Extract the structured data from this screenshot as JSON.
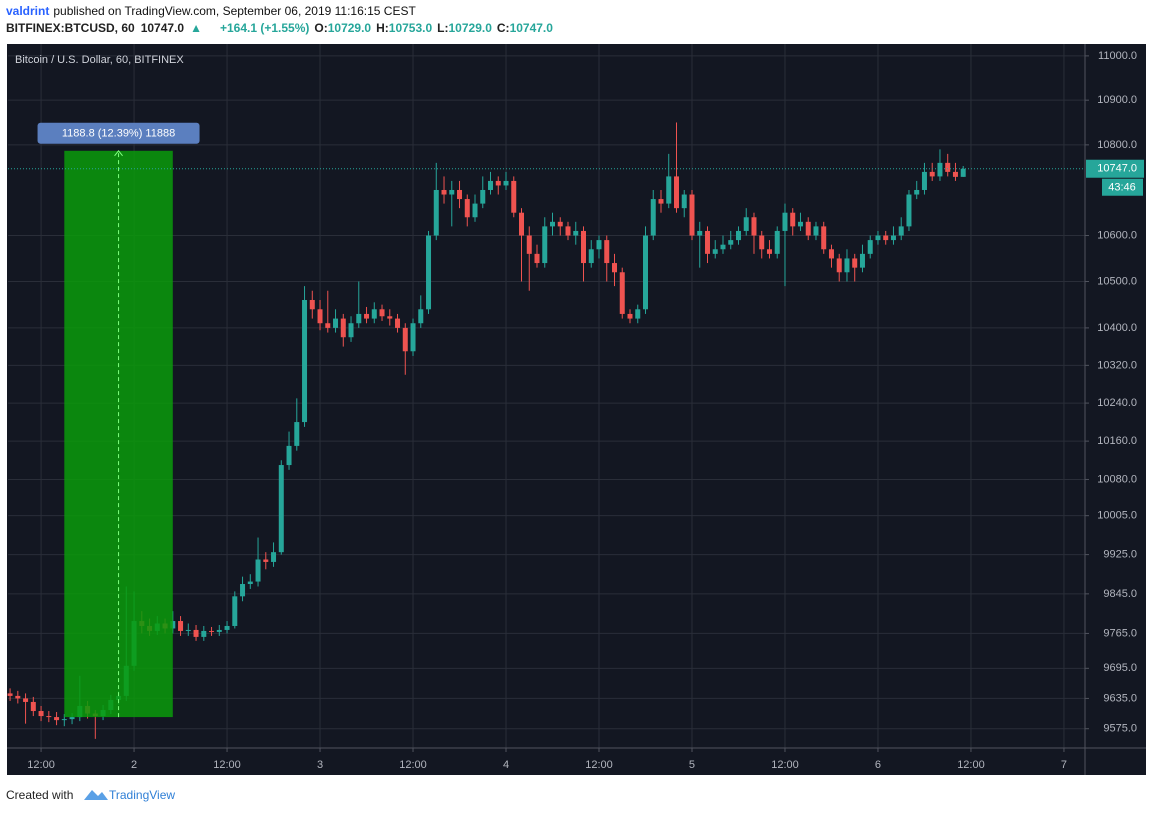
{
  "header": {
    "publisher": "valdrint",
    "published": "published on TradingView.com, September 06, 2019 11:16:15 CEST",
    "symbol": "BITFINEX:BTCUSD, 60",
    "last": "10747.0",
    "change": "+164.1 (+1.55%)",
    "ohlc": [
      {
        "key": "O:",
        "value": "10729.0"
      },
      {
        "key": "H:",
        "value": "10753.0"
      },
      {
        "key": "L:",
        "value": "10729.0"
      },
      {
        "key": "C:",
        "value": "10747.0"
      }
    ]
  },
  "chart_data": {
    "type": "candlestick",
    "title": "Bitcoin / U.S. Dollar, 60, BITFINEX",
    "up_color": "#26a69a",
    "down_color": "#ef5350",
    "background": "#131722",
    "grid": true,
    "log_scale": true,
    "x": [
      "2019-09-01T08:00",
      "2019-09-01T09:00",
      "2019-09-01T10:00",
      "2019-09-01T11:00",
      "2019-09-01T12:00",
      "2019-09-01T13:00",
      "2019-09-01T14:00",
      "2019-09-01T15:00",
      "2019-09-01T16:00",
      "2019-09-01T17:00",
      "2019-09-01T18:00",
      "2019-09-01T19:00",
      "2019-09-01T20:00",
      "2019-09-01T21:00",
      "2019-09-01T22:00",
      "2019-09-01T23:00",
      "2019-09-02T00:00",
      "2019-09-02T01:00",
      "2019-09-02T02:00",
      "2019-09-02T03:00",
      "2019-09-02T04:00",
      "2019-09-02T05:00",
      "2019-09-02T06:00",
      "2019-09-02T07:00",
      "2019-09-02T08:00",
      "2019-09-02T09:00",
      "2019-09-02T10:00",
      "2019-09-02T11:00",
      "2019-09-02T12:00",
      "2019-09-02T13:00",
      "2019-09-02T14:00",
      "2019-09-02T15:00",
      "2019-09-02T16:00",
      "2019-09-02T17:00",
      "2019-09-02T18:00",
      "2019-09-02T19:00",
      "2019-09-02T20:00",
      "2019-09-02T21:00",
      "2019-09-02T22:00",
      "2019-09-02T23:00",
      "2019-09-03T00:00",
      "2019-09-03T01:00",
      "2019-09-03T02:00",
      "2019-09-03T03:00",
      "2019-09-03T04:00",
      "2019-09-03T05:00",
      "2019-09-03T06:00",
      "2019-09-03T07:00",
      "2019-09-03T08:00",
      "2019-09-03T09:00",
      "2019-09-03T10:00",
      "2019-09-03T11:00",
      "2019-09-03T12:00",
      "2019-09-03T13:00",
      "2019-09-03T14:00",
      "2019-09-03T15:00",
      "2019-09-03T16:00",
      "2019-09-03T17:00",
      "2019-09-03T18:00",
      "2019-09-03T19:00",
      "2019-09-03T20:00",
      "2019-09-03T21:00",
      "2019-09-03T22:00",
      "2019-09-03T23:00",
      "2019-09-04T00:00",
      "2019-09-04T01:00",
      "2019-09-04T02:00",
      "2019-09-04T03:00",
      "2019-09-04T04:00",
      "2019-09-04T05:00",
      "2019-09-04T06:00",
      "2019-09-04T07:00",
      "2019-09-04T08:00",
      "2019-09-04T09:00",
      "2019-09-04T10:00",
      "2019-09-04T11:00",
      "2019-09-04T12:00",
      "2019-09-04T13:00",
      "2019-09-04T14:00",
      "2019-09-04T15:00",
      "2019-09-04T16:00",
      "2019-09-04T17:00",
      "2019-09-04T18:00",
      "2019-09-04T19:00",
      "2019-09-04T20:00",
      "2019-09-04T21:00",
      "2019-09-04T22:00",
      "2019-09-04T23:00",
      "2019-09-05T00:00",
      "2019-09-05T01:00",
      "2019-09-05T02:00",
      "2019-09-05T03:00",
      "2019-09-05T04:00",
      "2019-09-05T05:00",
      "2019-09-05T06:00",
      "2019-09-05T07:00",
      "2019-09-05T08:00",
      "2019-09-05T09:00",
      "2019-09-05T10:00",
      "2019-09-05T11:00",
      "2019-09-05T12:00",
      "2019-09-05T13:00",
      "2019-09-05T14:00",
      "2019-09-05T15:00",
      "2019-09-05T16:00",
      "2019-09-05T17:00",
      "2019-09-05T18:00",
      "2019-09-05T19:00",
      "2019-09-05T20:00",
      "2019-09-05T21:00",
      "2019-09-05T22:00",
      "2019-09-05T23:00",
      "2019-09-06T00:00",
      "2019-09-06T01:00",
      "2019-09-06T02:00",
      "2019-09-06T03:00",
      "2019-09-06T04:00",
      "2019-09-06T05:00",
      "2019-09-06T06:00",
      "2019-09-06T07:00",
      "2019-09-06T08:00",
      "2019-09-06T09:00",
      "2019-09-06T10:00",
      "2019-09-06T11:00"
    ],
    "open": [
      9645,
      9640,
      9635,
      9628,
      9610,
      9600,
      9598,
      9592,
      9594,
      9598,
      9620,
      9605,
      9600,
      9612,
      9632,
      9640,
      9700,
      9790,
      9780,
      9770,
      9785,
      9775,
      9790,
      9770,
      9772,
      9758,
      9770,
      9768,
      9772,
      9780,
      9840,
      9865,
      9870,
      9915,
      9910,
      9930,
      10110,
      10150,
      10200,
      10460,
      10440,
      10410,
      10400,
      10420,
      10380,
      10410,
      10430,
      10420,
      10440,
      10425,
      10420,
      10400,
      10350,
      10410,
      10440,
      10600,
      10700,
      10690,
      10700,
      10680,
      10640,
      10670,
      10700,
      10720,
      10710,
      10720,
      10650,
      10600,
      10560,
      10540,
      10620,
      10630,
      10620,
      10600,
      10610,
      10540,
      10570,
      10590,
      10540,
      10520,
      10430,
      10420,
      10440,
      10600,
      10680,
      10670,
      10730,
      10660,
      10690,
      10600,
      10610,
      10560,
      10570,
      10580,
      10590,
      10610,
      10640,
      10600,
      10570,
      10560,
      10610,
      10650,
      10620,
      10630,
      10600,
      10620,
      10570,
      10550,
      10520,
      10550,
      10530,
      10560,
      10590,
      10600,
      10590,
      10600,
      10620,
      10690,
      10700,
      10740,
      10730,
      10760,
      10740,
      10729
    ],
    "high": [
      9655,
      9650,
      9645,
      9638,
      9620,
      9610,
      9608,
      9604,
      9606,
      9680,
      9630,
      9612,
      9622,
      9642,
      9650,
      9860,
      9850,
      9810,
      9795,
      9800,
      9795,
      9810,
      9800,
      9785,
      9782,
      9780,
      9778,
      9782,
      9790,
      9850,
      9880,
      9885,
      9960,
      9930,
      9950,
      10120,
      10180,
      10250,
      10490,
      10480,
      10460,
      10480,
      10440,
      10430,
      10425,
      10500,
      10445,
      10455,
      10450,
      10440,
      10430,
      10410,
      10420,
      10470,
      10610,
      10760,
      10730,
      10720,
      10720,
      10690,
      10690,
      10730,
      10740,
      10730,
      10740,
      10730,
      10660,
      10620,
      10580,
      10640,
      10650,
      10640,
      10630,
      10630,
      10620,
      10590,
      10600,
      10600,
      10560,
      10530,
      10440,
      10450,
      10620,
      10700,
      10700,
      10780,
      10850,
      10700,
      10700,
      10630,
      10620,
      10590,
      10600,
      10610,
      10620,
      10660,
      10650,
      10610,
      10590,
      10620,
      10670,
      10660,
      10650,
      10640,
      10630,
      10630,
      10580,
      10560,
      10570,
      10560,
      10580,
      10600,
      10610,
      10610,
      10620,
      10640,
      10700,
      10720,
      10760,
      10760,
      10790,
      10780,
      10760,
      10753
    ],
    "low": [
      9630,
      9625,
      9585,
      9600,
      9590,
      9588,
      9582,
      9580,
      9584,
      9590,
      9595,
      9555,
      9592,
      9604,
      9622,
      9630,
      9690,
      9765,
      9760,
      9762,
      9765,
      9765,
      9760,
      9760,
      9750,
      9750,
      9760,
      9760,
      9765,
      9775,
      9830,
      9855,
      9860,
      9895,
      9900,
      9925,
      10100,
      10140,
      10190,
      10420,
      10395,
      10390,
      10390,
      10360,
      10370,
      10400,
      10410,
      10410,
      10415,
      10405,
      10390,
      10300,
      10340,
      10400,
      10430,
      10590,
      10670,
      10620,
      10660,
      10620,
      10630,
      10660,
      10690,
      10690,
      10700,
      10640,
      10500,
      10480,
      10530,
      10530,
      10600,
      10600,
      10590,
      10580,
      10500,
      10530,
      10550,
      10500,
      10490,
      10420,
      10410,
      10410,
      10430,
      10590,
      10650,
      10660,
      10650,
      10640,
      10590,
      10530,
      10540,
      10550,
      10560,
      10570,
      10580,
      10600,
      10560,
      10550,
      10550,
      10550,
      10490,
      10600,
      10610,
      10590,
      10590,
      10560,
      10530,
      10500,
      10500,
      10500,
      10520,
      10550,
      10580,
      10580,
      10580,
      10590,
      10610,
      10680,
      10690,
      10720,
      10720,
      10730,
      10720,
      10729
    ],
    "close": [
      9640,
      9635,
      9628,
      9610,
      9600,
      9598,
      9592,
      9594,
      9598,
      9620,
      9605,
      9600,
      9612,
      9632,
      9640,
      9700,
      9790,
      9780,
      9770,
      9785,
      9775,
      9790,
      9770,
      9772,
      9758,
      9770,
      9768,
      9772,
      9780,
      9840,
      9865,
      9870,
      9915,
      9910,
      9930,
      10110,
      10150,
      10200,
      10460,
      10440,
      10410,
      10400,
      10420,
      10380,
      10410,
      10430,
      10420,
      10440,
      10425,
      10420,
      10400,
      10350,
      10410,
      10440,
      10600,
      10700,
      10690,
      10700,
      10680,
      10640,
      10670,
      10700,
      10720,
      10710,
      10720,
      10650,
      10600,
      10560,
      10540,
      10620,
      10630,
      10620,
      10600,
      10610,
      10540,
      10570,
      10590,
      10540,
      10520,
      10430,
      10420,
      10440,
      10600,
      10680,
      10670,
      10730,
      10660,
      10690,
      10600,
      10610,
      10560,
      10570,
      10580,
      10590,
      10610,
      10640,
      10600,
      10570,
      10560,
      10610,
      10650,
      10620,
      10630,
      10600,
      10620,
      10570,
      10550,
      10520,
      10550,
      10530,
      10560,
      10590,
      10600,
      10590,
      10600,
      10620,
      10690,
      10700,
      10740,
      10730,
      10760,
      10740,
      10729,
      10747
    ],
    "xlim": [
      "2019-09-01T07:44",
      "2019-09-07T02:43"
    ],
    "xticks": [
      {
        "value": "2019-09-01T12:00",
        "label": "12:00"
      },
      {
        "value": "2019-09-02T00:00",
        "label": "2"
      },
      {
        "value": "2019-09-02T12:00",
        "label": "12:00"
      },
      {
        "value": "2019-09-03T00:00",
        "label": "3"
      },
      {
        "value": "2019-09-03T12:00",
        "label": "12:00"
      },
      {
        "value": "2019-09-04T00:00",
        "label": "4"
      },
      {
        "value": "2019-09-04T12:00",
        "label": "12:00"
      },
      {
        "value": "2019-09-05T00:00",
        "label": "5"
      },
      {
        "value": "2019-09-05T12:00",
        "label": "12:00"
      },
      {
        "value": "2019-09-06T00:00",
        "label": "6"
      },
      {
        "value": "2019-09-06T12:00",
        "label": "12:00"
      },
      {
        "value": "2019-09-07T00:00",
        "label": "7"
      }
    ],
    "ylim": [
      9537,
      11027
    ],
    "yticks": [
      {
        "value": 9575,
        "label": "9575.0"
      },
      {
        "value": 9635,
        "label": "9635.0"
      },
      {
        "value": 9695,
        "label": "9695.0"
      },
      {
        "value": 9765,
        "label": "9765.0"
      },
      {
        "value": 9845,
        "label": "9845.0"
      },
      {
        "value": 9925,
        "label": "9925.0"
      },
      {
        "value": 10005,
        "label": "10005.0"
      },
      {
        "value": 10080,
        "label": "10080.0"
      },
      {
        "value": 10160,
        "label": "10160.0"
      },
      {
        "value": 10240,
        "label": "10240.0"
      },
      {
        "value": 10320,
        "label": "10320.0"
      },
      {
        "value": 10400,
        "label": "10400.0"
      },
      {
        "value": 10500,
        "label": "10500.0"
      },
      {
        "value": 10600,
        "label": "10600.0"
      },
      {
        "value": 10800,
        "label": "10800.0"
      },
      {
        "value": 10900,
        "label": "10900.0"
      },
      {
        "value": 11000,
        "label": "11000.0"
      }
    ],
    "last_price": {
      "value": 10747,
      "label": "10747.0"
    },
    "countdown": "43:46",
    "measure": {
      "label": "1188.8 (12.39%) 11888",
      "color": "#0b9b0b",
      "from": "2019-09-01T15:00",
      "to": "2019-09-02T05:00",
      "from_price": 9598,
      "to_price": 10786.8
    }
  },
  "footer": {
    "created": "Created with",
    "brand": "TradingView"
  }
}
